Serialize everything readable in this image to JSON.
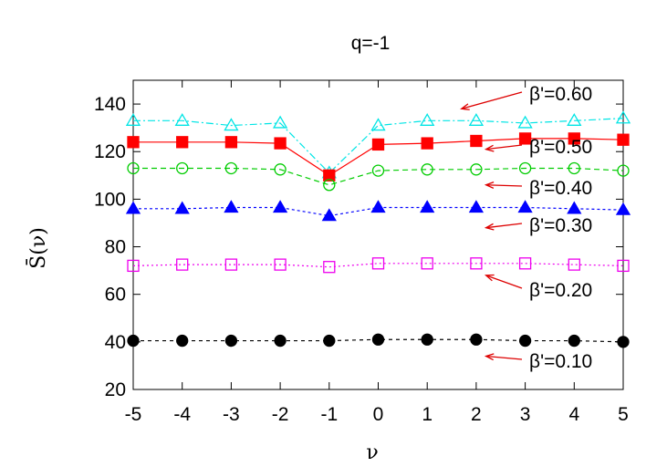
{
  "chart_data": {
    "type": "line",
    "title": "q=-1",
    "xlabel": "ν",
    "ylabel": "S̄(ν)",
    "xlim": [
      -5,
      5
    ],
    "ylim": [
      20,
      150
    ],
    "x_ticks": [
      "-5",
      "-4",
      "-3",
      "-2",
      "-1",
      "0",
      "1",
      "2",
      "3",
      "4",
      "5"
    ],
    "y_ticks": [
      "20",
      "40",
      "60",
      "80",
      "100",
      "120",
      "140"
    ],
    "grid": false,
    "x": [
      -5,
      -4,
      -3,
      -2,
      -1,
      0,
      1,
      2,
      3,
      4,
      5
    ],
    "series": [
      {
        "label": "β'=0.60",
        "color": "#00e5e5",
        "marker": "triangle-open",
        "dash": "8,3,2,3",
        "values": [
          133,
          133,
          131,
          132,
          111,
          131,
          133,
          133,
          132,
          133,
          134
        ]
      },
      {
        "label": "β'=0.50",
        "color": "#ff0000",
        "marker": "square-filled",
        "dash": "",
        "values": [
          124,
          124,
          124,
          123.5,
          110,
          123,
          123.5,
          124.5,
          125.5,
          125.5,
          125
        ]
      },
      {
        "label": "β'=0.40",
        "color": "#00cc00",
        "marker": "circle-open",
        "dash": "6,4",
        "values": [
          113,
          113,
          113,
          112.5,
          106,
          112,
          112.5,
          112.5,
          113,
          113,
          112
        ]
      },
      {
        "label": "β'=0.30",
        "color": "#0000ff",
        "marker": "triangle-filled",
        "dash": "3,3",
        "values": [
          96,
          96,
          96.5,
          96.5,
          93,
          96.5,
          96.5,
          96.5,
          96.5,
          96,
          95.5
        ]
      },
      {
        "label": "β'=0.20",
        "color": "#ee00ee",
        "marker": "square-open",
        "dash": "2,3",
        "values": [
          72,
          72.5,
          72.5,
          72.5,
          71.5,
          73,
          73,
          73,
          73,
          72.5,
          72
        ]
      },
      {
        "label": "β'=0.10",
        "color": "#000000",
        "marker": "circle-filled",
        "dash": "4,4",
        "values": [
          40.5,
          40.5,
          40.5,
          40.5,
          40.5,
          41,
          41,
          41,
          40.5,
          40.5,
          40
        ]
      }
    ],
    "annotations": [
      {
        "text": "β'=0.60",
        "arrow_to": [
          1.7,
          138
        ]
      },
      {
        "text": "β'=0.50",
        "arrow_to": [
          2.2,
          121
        ]
      },
      {
        "text": "β'=0.40",
        "arrow_to": [
          2.2,
          106
        ]
      },
      {
        "text": "β'=0.30",
        "arrow_to": [
          2.2,
          88
        ]
      },
      {
        "text": "β'=0.20",
        "arrow_to": [
          2.2,
          68
        ]
      },
      {
        "text": "β'=0.10",
        "arrow_to": [
          2.2,
          34
        ]
      }
    ],
    "annotation_color": "#dd0000"
  }
}
